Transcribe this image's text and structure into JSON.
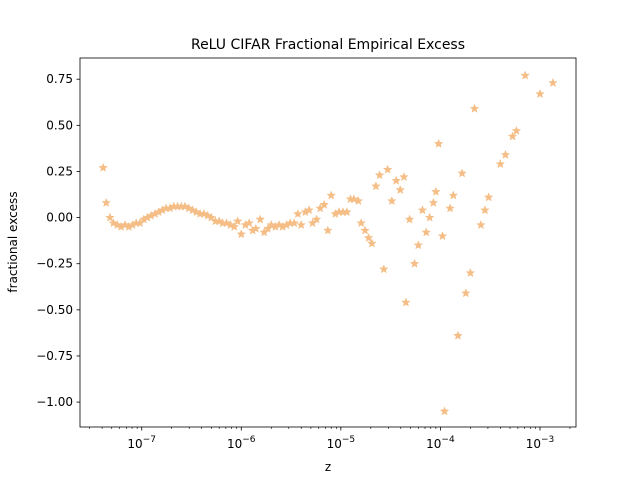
{
  "chart_data": {
    "type": "scatter",
    "title": "ReLU CIFAR Fractional Empirical Excess",
    "xlabel": "z",
    "ylabel": "fractional excess",
    "xscale": "log",
    "xlim": [
      2.4e-08,
      0.0023
    ],
    "ylim": [
      -1.135,
      0.865
    ],
    "grid": false,
    "marker": "star",
    "marker_color": "#f5be87",
    "xticks": [
      {
        "value": 1e-07,
        "base": "10",
        "exp": "−7"
      },
      {
        "value": 1e-06,
        "base": "10",
        "exp": "−6"
      },
      {
        "value": 1e-05,
        "base": "10",
        "exp": "−5"
      },
      {
        "value": 0.0001,
        "base": "10",
        "exp": "−4"
      },
      {
        "value": 0.001,
        "base": "10",
        "exp": "−3"
      }
    ],
    "yticks": [
      {
        "value": 0.75,
        "label": "0.75"
      },
      {
        "value": 0.5,
        "label": "0.50"
      },
      {
        "value": 0.25,
        "label": "0.25"
      },
      {
        "value": 0.0,
        "label": "0.00"
      },
      {
        "value": -0.25,
        "label": "−0.25"
      },
      {
        "value": -0.5,
        "label": "−0.50"
      },
      {
        "value": -0.75,
        "label": "−0.75"
      },
      {
        "value": -1.0,
        "label": "−1.00"
      }
    ],
    "points": [
      [
        4.1e-08,
        0.27
      ],
      [
        4.4e-08,
        0.08
      ],
      [
        4.8e-08,
        0.0
      ],
      [
        5.2e-08,
        -0.03
      ],
      [
        5.7e-08,
        -0.04
      ],
      [
        6.2e-08,
        -0.05
      ],
      [
        6.8e-08,
        -0.04
      ],
      [
        7.4e-08,
        -0.05
      ],
      [
        8.1e-08,
        -0.04
      ],
      [
        8.8e-08,
        -0.03
      ],
      [
        9.6e-08,
        -0.03
      ],
      [
        1.05e-07,
        -0.01
      ],
      [
        1.14e-07,
        0.0
      ],
      [
        1.24e-07,
        0.01
      ],
      [
        1.36e-07,
        0.02
      ],
      [
        1.48e-07,
        0.03
      ],
      [
        1.61e-07,
        0.04
      ],
      [
        1.76e-07,
        0.05
      ],
      [
        1.92e-07,
        0.05
      ],
      [
        2.1e-07,
        0.06
      ],
      [
        2.29e-07,
        0.06
      ],
      [
        2.5e-07,
        0.06
      ],
      [
        2.72e-07,
        0.06
      ],
      [
        2.97e-07,
        0.05
      ],
      [
        3.24e-07,
        0.04
      ],
      [
        3.54e-07,
        0.03
      ],
      [
        3.86e-07,
        0.02
      ],
      [
        4.21e-07,
        0.02
      ],
      [
        4.6e-07,
        0.01
      ],
      [
        5e-07,
        0.0
      ],
      [
        5.5e-07,
        -0.02
      ],
      [
        6e-07,
        -0.02
      ],
      [
        6.5e-07,
        -0.03
      ],
      [
        7.1e-07,
        -0.03
      ],
      [
        7.8e-07,
        -0.04
      ],
      [
        8.5e-07,
        -0.05
      ],
      [
        9.2e-07,
        -0.02
      ],
      [
        1e-06,
        -0.09
      ],
      [
        1.1e-06,
        -0.04
      ],
      [
        1.2e-06,
        -0.03
      ],
      [
        1.3e-06,
        -0.07
      ],
      [
        1.4e-06,
        -0.06
      ],
      [
        1.55e-06,
        -0.01
      ],
      [
        1.7e-06,
        -0.08
      ],
      [
        1.85e-06,
        -0.06
      ],
      [
        2e-06,
        -0.04
      ],
      [
        2.2e-06,
        -0.05
      ],
      [
        2.4e-06,
        -0.04
      ],
      [
        2.6e-06,
        -0.05
      ],
      [
        2.85e-06,
        -0.04
      ],
      [
        3.1e-06,
        -0.03
      ],
      [
        3.4e-06,
        -0.03
      ],
      [
        3.7e-06,
        0.02
      ],
      [
        4e-06,
        -0.04
      ],
      [
        4.4e-06,
        0.03
      ],
      [
        4.8e-06,
        0.04
      ],
      [
        5.2e-06,
        -0.03
      ],
      [
        5.7e-06,
        -0.01
      ],
      [
        6.2e-06,
        0.05
      ],
      [
        6.8e-06,
        0.07
      ],
      [
        7.4e-06,
        -0.07
      ],
      [
        8e-06,
        0.12
      ],
      [
        8.8e-06,
        0.02
      ],
      [
        9.6e-06,
        0.03
      ],
      [
        1.05e-05,
        0.03
      ],
      [
        1.15e-05,
        0.03
      ],
      [
        1.25e-05,
        0.1
      ],
      [
        1.35e-05,
        0.1
      ],
      [
        1.5e-05,
        0.09
      ],
      [
        1.6e-05,
        -0.03
      ],
      [
        1.75e-05,
        -0.07
      ],
      [
        1.9e-05,
        -0.11
      ],
      [
        2.05e-05,
        -0.14
      ],
      [
        2.25e-05,
        0.17
      ],
      [
        2.45e-05,
        0.23
      ],
      [
        2.7e-05,
        -0.28
      ],
      [
        2.95e-05,
        0.26
      ],
      [
        3.25e-05,
        0.09
      ],
      [
        3.6e-05,
        0.2
      ],
      [
        3.95e-05,
        0.15
      ],
      [
        4.3e-05,
        0.22
      ],
      [
        4.5e-05,
        -0.46
      ],
      [
        4.9e-05,
        -0.01
      ],
      [
        5.5e-05,
        -0.25
      ],
      [
        6e-05,
        -0.15
      ],
      [
        6.6e-05,
        0.04
      ],
      [
        7.2e-05,
        -0.08
      ],
      [
        7.8e-05,
        0.0
      ],
      [
        8.5e-05,
        0.08
      ],
      [
        9e-05,
        0.14
      ],
      [
        9.6e-05,
        0.4
      ],
      [
        0.000105,
        -0.1
      ],
      [
        0.00011,
        -1.05
      ],
      [
        0.000125,
        0.05
      ],
      [
        0.000135,
        0.12
      ],
      [
        0.00015,
        -0.64
      ],
      [
        0.000165,
        0.24
      ],
      [
        0.00018,
        -0.41
      ],
      [
        0.0002,
        -0.3
      ],
      [
        0.00022,
        0.59
      ],
      [
        0.000255,
        -0.04
      ],
      [
        0.00028,
        0.04
      ],
      [
        0.000305,
        0.11
      ],
      [
        0.0004,
        0.29
      ],
      [
        0.00045,
        0.34
      ],
      [
        0.00053,
        0.44
      ],
      [
        0.00058,
        0.47
      ],
      [
        0.00071,
        0.77
      ],
      [
        0.001,
        0.67
      ],
      [
        0.00135,
        0.73
      ]
    ]
  }
}
